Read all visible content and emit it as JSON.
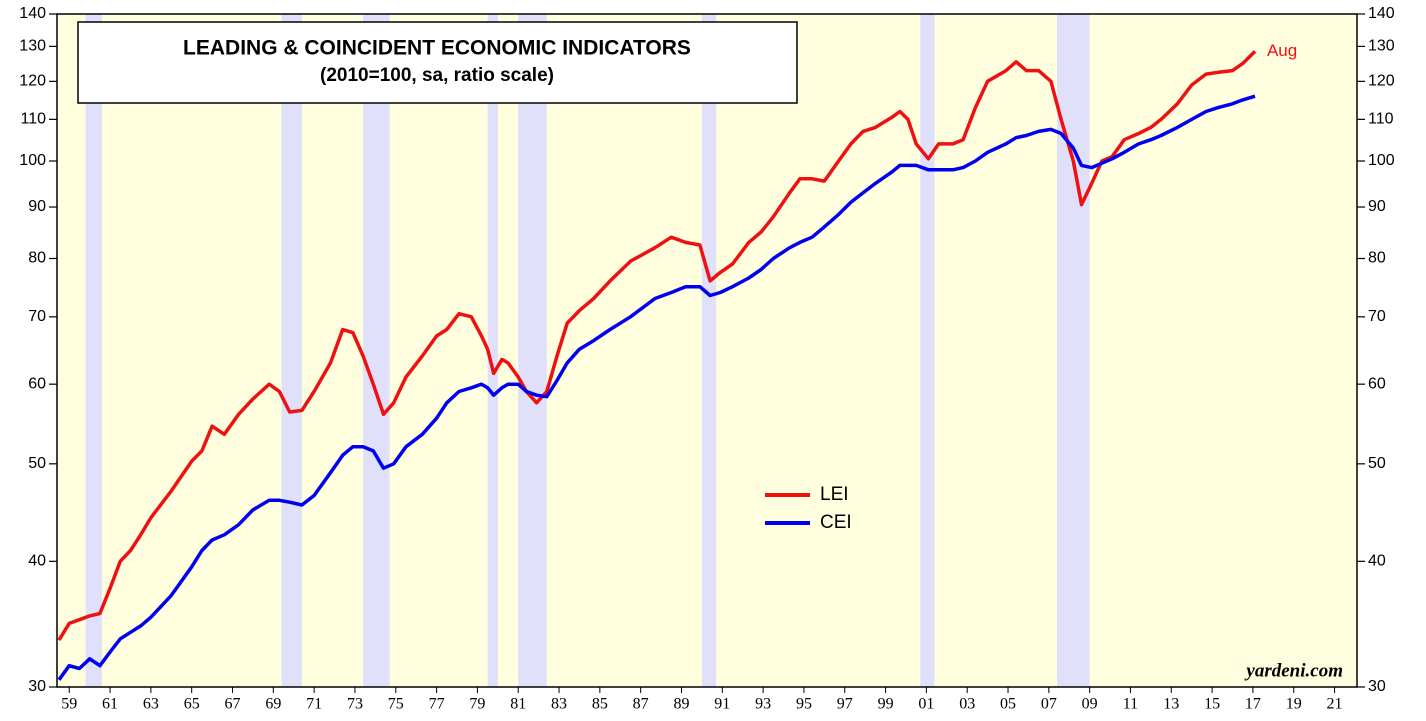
{
  "chart_data": {
    "type": "line",
    "title": "LEADING & COINCIDENT ECONOMIC INDICATORS",
    "subtitle": "(2010=100, sa, ratio scale)",
    "annotation": "Aug",
    "source": "yardeni.com",
    "log_scale": true,
    "legend_position": "center",
    "xlim": [
      1958.9,
      2022.6
    ],
    "ylim": [
      30,
      140
    ],
    "yticks": [
      30,
      40,
      50,
      60,
      70,
      80,
      90,
      100,
      110,
      120,
      130,
      140
    ],
    "xticks": [
      {
        "value": 1959.5,
        "label": "59"
      },
      {
        "value": 1961.5,
        "label": "61"
      },
      {
        "value": 1963.5,
        "label": "63"
      },
      {
        "value": 1965.5,
        "label": "65"
      },
      {
        "value": 1967.5,
        "label": "67"
      },
      {
        "value": 1969.5,
        "label": "69"
      },
      {
        "value": 1971.5,
        "label": "71"
      },
      {
        "value": 1973.5,
        "label": "73"
      },
      {
        "value": 1975.5,
        "label": "75"
      },
      {
        "value": 1977.5,
        "label": "77"
      },
      {
        "value": 1979.5,
        "label": "79"
      },
      {
        "value": 1981.5,
        "label": "81"
      },
      {
        "value": 1983.5,
        "label": "83"
      },
      {
        "value": 1985.5,
        "label": "85"
      },
      {
        "value": 1987.5,
        "label": "87"
      },
      {
        "value": 1989.5,
        "label": "89"
      },
      {
        "value": 1991.5,
        "label": "91"
      },
      {
        "value": 1993.5,
        "label": "93"
      },
      {
        "value": 1995.5,
        "label": "95"
      },
      {
        "value": 1997.5,
        "label": "97"
      },
      {
        "value": 1999.5,
        "label": "99"
      },
      {
        "value": 2001.5,
        "label": "01"
      },
      {
        "value": 2003.5,
        "label": "03"
      },
      {
        "value": 2005.5,
        "label": "05"
      },
      {
        "value": 2007.5,
        "label": "07"
      },
      {
        "value": 2009.5,
        "label": "09"
      },
      {
        "value": 2011.5,
        "label": "11"
      },
      {
        "value": 2013.5,
        "label": "13"
      },
      {
        "value": 2015.5,
        "label": "15"
      },
      {
        "value": 2017.5,
        "label": "17"
      },
      {
        "value": 2019.5,
        "label": "19"
      },
      {
        "value": 2021.5,
        "label": "21"
      }
    ],
    "recessions": [
      [
        1960.3,
        1961.1
      ],
      [
        1969.9,
        1970.9
      ],
      [
        1973.9,
        1975.2
      ],
      [
        1980.0,
        1980.5
      ],
      [
        1981.5,
        1982.9
      ],
      [
        1990.5,
        1991.2
      ],
      [
        2001.2,
        2001.9
      ],
      [
        2007.9,
        2009.5
      ]
    ],
    "recession_color": "#e0e0fa",
    "background_color": "#ffffe0",
    "x": [
      1959.0,
      1959.5,
      1960.0,
      1960.5,
      1961.0,
      1961.5,
      1962.0,
      1962.5,
      1963.0,
      1963.5,
      1964.5,
      1965.5,
      1966.0,
      1966.5,
      1967.1,
      1967.8,
      1968.5,
      1969.3,
      1969.8,
      1970.3,
      1970.9,
      1971.5,
      1972.3,
      1972.9,
      1973.4,
      1973.9,
      1974.4,
      1974.9,
      1975.4,
      1976.0,
      1976.8,
      1977.5,
      1978.0,
      1978.6,
      1979.2,
      1979.7,
      1980.0,
      1980.3,
      1980.7,
      1981.0,
      1981.5,
      1981.9,
      1982.4,
      1982.9,
      1983.4,
      1983.9,
      1984.5,
      1985.2,
      1986,
      1987,
      1988.2,
      1989,
      1989.7,
      1990.4,
      1990.9,
      1991.4,
      1992,
      1992.8,
      1993.4,
      1994,
      1994.8,
      1995.3,
      1995.9,
      1996.5,
      1997.2,
      1997.8,
      1998.4,
      1999,
      1999.8,
      2000.2,
      2000.6,
      2001.0,
      2001.6,
      2002.1,
      2002.8,
      2003.3,
      2003.9,
      2004.5,
      2005.4,
      2005.9,
      2006.4,
      2007.0,
      2007.6,
      2008.1,
      2008.7,
      2009.1,
      2009.6,
      2010.1,
      2010.6,
      2011.2,
      2011.9,
      2012.5,
      2013.0,
      2013.8,
      2014.5,
      2015.2,
      2015.8,
      2016.5,
      2017.0,
      2017.6
    ],
    "series": [
      {
        "name": "LEI",
        "color": "#ee1111",
        "values": [
          33.4,
          34.7,
          35,
          35.3,
          35.5,
          37.6,
          40,
          41,
          42.5,
          44.2,
          47,
          50.3,
          51.5,
          54.5,
          53.5,
          56,
          58,
          60,
          59,
          56.3,
          56.5,
          59,
          63,
          68,
          67.5,
          64,
          60,
          56,
          57.5,
          61,
          64,
          67,
          68,
          70.5,
          70,
          67,
          65,
          61.5,
          63.5,
          63,
          61,
          59,
          57.5,
          59,
          64,
          69,
          71,
          73,
          76,
          79.5,
          82,
          84,
          83,
          82.5,
          76,
          77.5,
          79,
          83,
          85,
          88,
          93,
          96,
          96,
          95.5,
          100,
          104,
          107,
          108,
          110.5,
          112,
          110,
          104,
          100.5,
          104,
          104,
          105,
          113,
          120,
          123,
          125.5,
          123,
          123,
          120,
          110,
          100,
          90.5,
          95,
          100,
          101,
          105,
          106.5,
          108,
          110,
          114,
          119,
          122,
          122.5,
          123,
          125,
          128.5
        ]
      },
      {
        "name": "CEI",
        "color": "#0000ee",
        "values": [
          30.5,
          31.5,
          31.3,
          32,
          31.5,
          32.5,
          33.5,
          34,
          34.5,
          35.2,
          37,
          39.5,
          41,
          42,
          42.5,
          43.5,
          45,
          46,
          46,
          45.8,
          45.5,
          46.5,
          49,
          51,
          52,
          52,
          51.5,
          49.5,
          50,
          52,
          53.5,
          55.5,
          57.5,
          59,
          59.5,
          60,
          59.5,
          58.5,
          59.5,
          60,
          60,
          59,
          58.5,
          58.3,
          60.5,
          63,
          65,
          66.3,
          68,
          70,
          73,
          74,
          75,
          75,
          73.5,
          74,
          75,
          76.5,
          78,
          80,
          82,
          83,
          84,
          86,
          88.5,
          91,
          93,
          95,
          97.5,
          99,
          99,
          99,
          98,
          98,
          98,
          98.5,
          100,
          102,
          104,
          105.5,
          106,
          107,
          107.5,
          106.5,
          103,
          99,
          98.5,
          99.5,
          100.5,
          102,
          104,
          105,
          106,
          108,
          110,
          112,
          113,
          114,
          115,
          116
        ]
      }
    ]
  }
}
